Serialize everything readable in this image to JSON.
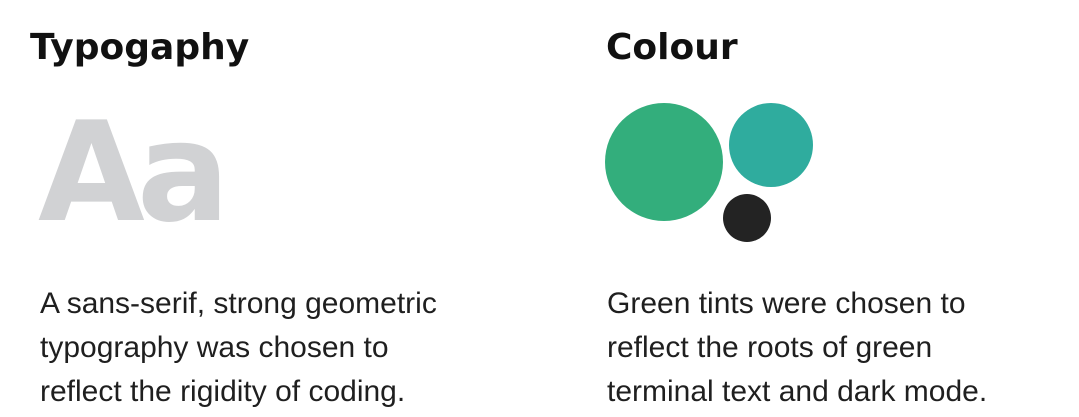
{
  "typography": {
    "title": "Typogaphy",
    "specimen": "Aa",
    "description_lines": [
      "A sans-serif, strong geometric",
      "typography was chosen to",
      "reflect the rigidity of coding."
    ]
  },
  "colour": {
    "title": "Colour",
    "swatches": {
      "green": "#33ae7c",
      "teal": "#2fac9e",
      "dark": "#232323"
    },
    "description_lines": [
      "Green tints were chosen to",
      "reflect the roots of green",
      "terminal text and dark mode."
    ]
  }
}
